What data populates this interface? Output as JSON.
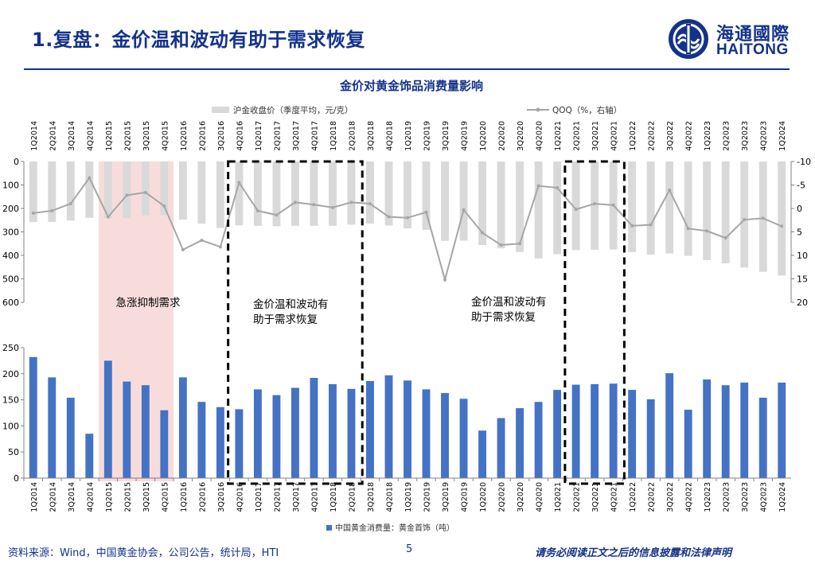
{
  "header": {
    "title": "1.复盘：金价温和波动有助于需求恢复",
    "logo_cn": "海通國際",
    "logo_en": "HAITONG"
  },
  "colors": {
    "brand": "#13328a",
    "bar_blue": "#4472c4",
    "bar_gray": "#d9d9d9",
    "line_gray": "#a6a6a6",
    "highlight": "#f8dcdc"
  },
  "chart_data": {
    "type": "bar",
    "title": "金价对黄金饰品消费量影响",
    "categories": [
      "1Q2014",
      "2Q2014",
      "3Q2014",
      "4Q2014",
      "1Q2015",
      "2Q2015",
      "3Q2015",
      "4Q2015",
      "1Q2016",
      "2Q2016",
      "3Q2016",
      "4Q2016",
      "1Q2017",
      "2Q2017",
      "3Q2017",
      "4Q2017",
      "1Q2018",
      "2Q2018",
      "3Q2018",
      "4Q2018",
      "1Q2019",
      "2Q2019",
      "3Q2019",
      "4Q2019",
      "1Q2020",
      "2Q2020",
      "3Q2020",
      "4Q2020",
      "1Q2021",
      "2Q2021",
      "3Q2021",
      "4Q2021",
      "1Q2022",
      "2Q2022",
      "3Q2022",
      "4Q2022",
      "1Q2023",
      "2Q2023",
      "3Q2023",
      "4Q2023",
      "1Q2024"
    ],
    "top_panel": {
      "left_axis": {
        "range": [
          0,
          600
        ],
        "ticks": [
          0,
          100,
          200,
          300,
          400,
          500,
          600
        ],
        "reversed": true
      },
      "right_axis": {
        "range": [
          -10,
          20
        ],
        "ticks": [
          -10,
          -5,
          0,
          5,
          10,
          15,
          20
        ],
        "reversed": true
      },
      "series": [
        {
          "name": "沪金收盘价（季度平均，元/克）",
          "type": "bar",
          "axis": "left",
          "values": [
            258,
            258,
            252,
            240,
            242,
            242,
            230,
            228,
            248,
            265,
            283,
            272,
            274,
            276,
            274,
            274,
            274,
            269,
            265,
            273,
            285,
            291,
            338,
            337,
            356,
            370,
            386,
            413,
            395,
            378,
            376,
            375,
            386,
            397,
            392,
            402,
            420,
            434,
            452,
            470,
            486
          ]
        },
        {
          "name": "QOQ（%，右轴）",
          "type": "line",
          "axis": "right",
          "values": [
            1.0,
            0.5,
            -1.0,
            -6.5,
            1.8,
            -2.8,
            -3.4,
            -0.5,
            8.8,
            6.8,
            8.2,
            -5.5,
            0.5,
            1.4,
            -1.3,
            -0.8,
            -0.2,
            -1.3,
            -1.0,
            1.8,
            2.0,
            0.8,
            15.2,
            0.3,
            5.2,
            7.8,
            7.5,
            -4.8,
            -4.4,
            0.2,
            -1.0,
            -0.7,
            3.7,
            3.5,
            -3.9,
            4.3,
            4.8,
            6.3,
            2.4,
            2.1,
            3.8
          ]
        }
      ],
      "legend": [
        "沪金收盘价（季度平均，元/克）",
        "QOQ（%，右轴）"
      ],
      "legend_position": "top"
    },
    "bottom_panel": {
      "axis": {
        "range": [
          0,
          250
        ],
        "ticks": [
          0,
          50,
          100,
          150,
          200,
          250
        ]
      },
      "series": [
        {
          "name": "中国黄金消费量：黄金首饰（吨）",
          "type": "bar",
          "values": [
            232,
            193,
            154,
            85,
            225,
            185,
            178,
            130,
            193,
            146,
            136,
            132,
            170,
            159,
            173,
            192,
            180,
            171,
            186,
            197,
            187,
            170,
            163,
            152,
            91,
            115,
            134,
            146,
            169,
            179,
            180,
            181,
            169,
            151,
            201,
            131,
            189,
            178,
            183,
            154,
            183
          ]
        }
      ],
      "legend_position": "bottom"
    },
    "annotations": {
      "shaded_region_label": "急涨抑制需求",
      "box_1_label_line1": "金价温和波动有",
      "box_1_label_line2": "助于需求恢复",
      "box_2_label_line1": "金价温和波动有",
      "box_2_label_line2": "助于需求恢复"
    },
    "highlight_ranges": {
      "shaded": [
        "1Q2015",
        "4Q2015"
      ],
      "dashed_box_1": [
        "4Q2016",
        "2Q2018"
      ],
      "dashed_box_2": [
        "2Q2021",
        "4Q2021"
      ]
    }
  },
  "footer": {
    "source": "资料来源：Wind，中国黄金协会，公司公告，统计局，HTI",
    "page": "5",
    "legal": "请务必阅读正文之后的信息披露和法律声明"
  }
}
